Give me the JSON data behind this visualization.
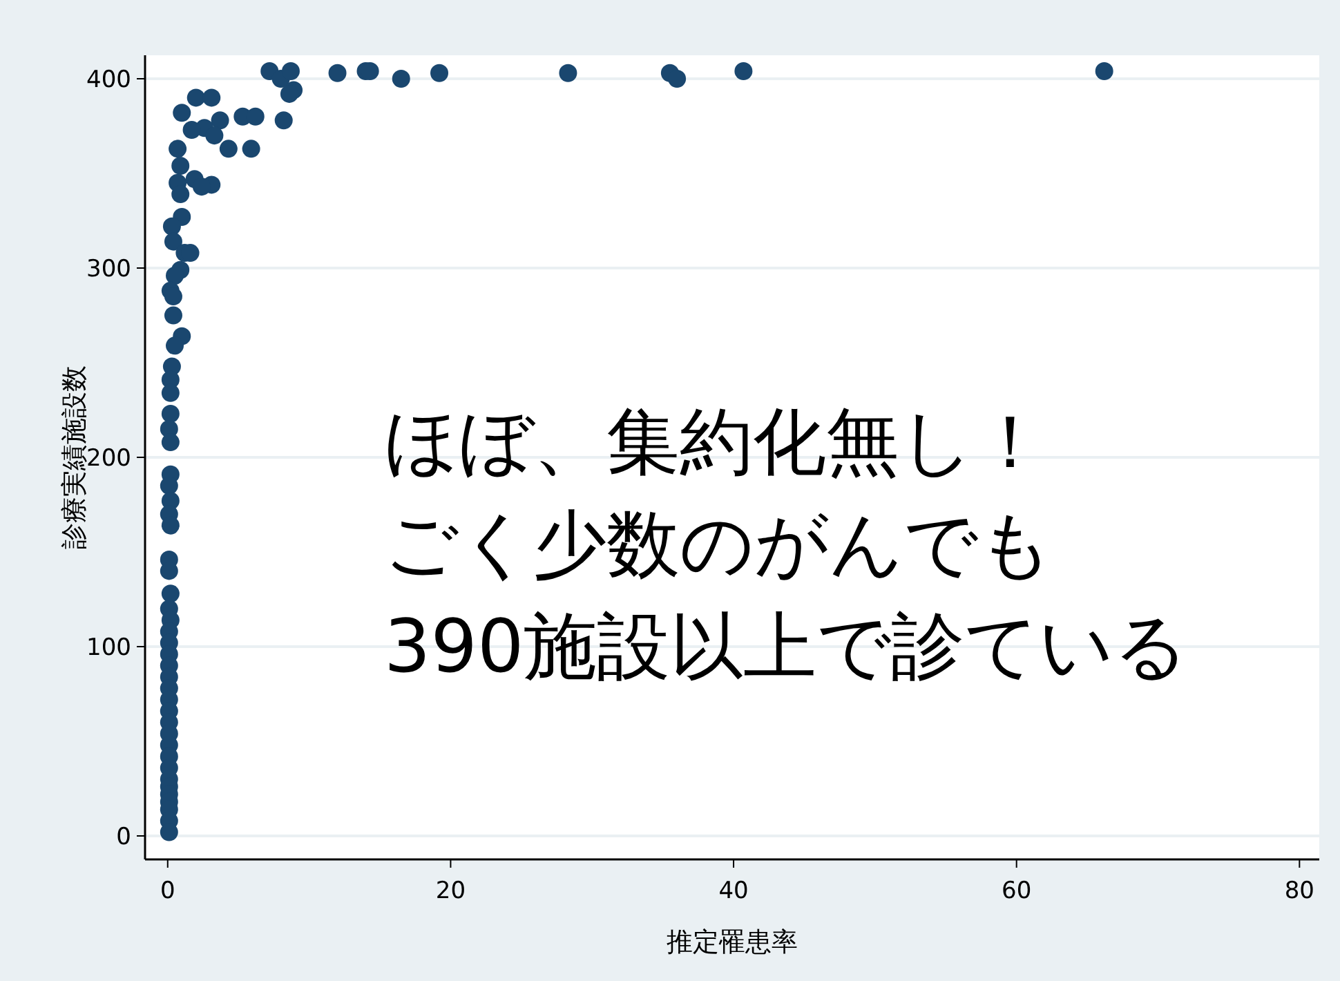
{
  "chart_data": {
    "type": "scatter",
    "xlabel": "推定罹患率",
    "ylabel": "診療実績施設数",
    "xlim": [
      -1.6,
      81.4
    ],
    "ylim": [
      -12.4,
      412.4
    ],
    "xticks": [
      0,
      20,
      40,
      60,
      80
    ],
    "yticks": [
      0,
      100,
      200,
      300,
      400
    ],
    "grid": "y",
    "marker": "circle",
    "annotations": [
      "ほぼ、集約化無し！",
      "ごく少数のがんでも",
      "390施設以上で診ている"
    ],
    "series": [
      {
        "color": "#1a476f",
        "x": [
          7.2,
          8.0,
          8.7,
          8.9,
          8.6,
          8.2,
          12.0,
          14.0,
          14.3,
          16.5,
          19.2,
          28.3,
          35.5,
          36.0,
          40.7,
          66.2,
          2.0,
          3.1,
          1.0,
          3.7,
          5.3,
          6.2,
          2.6,
          1.7,
          3.3,
          4.3,
          5.9,
          0.7,
          0.9,
          0.7,
          1.9,
          3.1,
          2.4,
          0.9,
          1.0,
          0.3,
          0.4,
          1.2,
          1.6,
          0.9,
          0.5,
          0.2,
          0.4,
          0.4,
          1.0,
          0.5,
          0.3,
          0.2,
          0.2,
          0.2,
          0.1,
          0.2,
          0.2,
          0.1,
          0.2,
          0.1,
          0.2,
          0.1,
          0.1,
          0.2,
          0.1,
          0.2,
          0.1,
          0.1,
          0.1,
          0.1,
          0.1,
          0.1,
          0.1,
          0.1,
          0.1,
          0.1,
          0.1,
          0.1,
          0.1,
          0.1,
          0.1,
          0.1,
          0.1,
          0.1,
          0.1,
          0.1
        ],
        "values": [
          404,
          400,
          404,
          394,
          392,
          378,
          403,
          404,
          404,
          400,
          403,
          403,
          403,
          400,
          404,
          404,
          390,
          390,
          382,
          378,
          380,
          380,
          374,
          373,
          370,
          363,
          363,
          363,
          354,
          345,
          347,
          344,
          343,
          339,
          327,
          322,
          314,
          308,
          308,
          299,
          296,
          288,
          285,
          275,
          264,
          259,
          248,
          241,
          234,
          223,
          215,
          208,
          191,
          185,
          177,
          170,
          164,
          146,
          140,
          128,
          120,
          114,
          108,
          102,
          96,
          90,
          84,
          78,
          72,
          66,
          60,
          54,
          48,
          42,
          36,
          30,
          26,
          22,
          18,
          14,
          8,
          2
        ]
      }
    ]
  }
}
